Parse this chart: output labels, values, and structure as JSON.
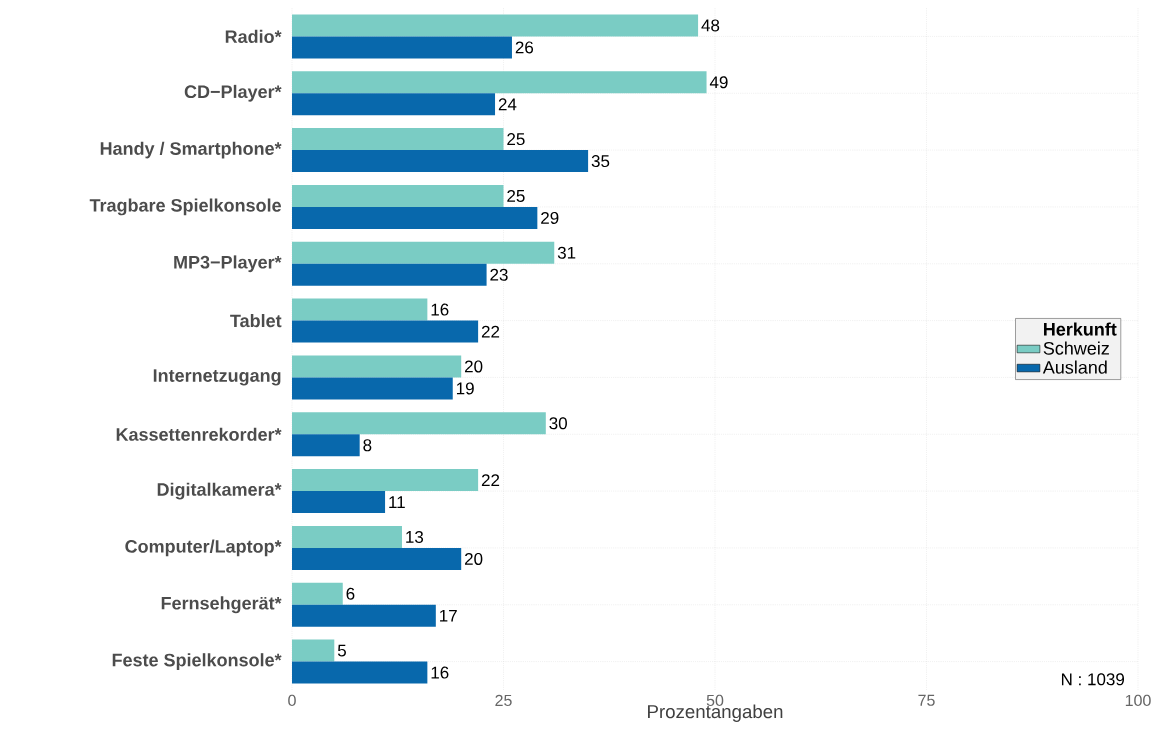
{
  "chart_data": {
    "type": "bar",
    "orientation": "horizontal",
    "categories": [
      "Radio*",
      "CD−Player*",
      "Handy / Smartphone*",
      "Tragbare Spielkonsole",
      "MP3−Player*",
      "Tablet",
      "Internetzugang",
      "Kassettenrekorder*",
      "Digitalkamera*",
      "Computer/Laptop*",
      "Fernsehgerät*",
      "Feste Spielkonsole*"
    ],
    "series": [
      {
        "name": "Schweiz",
        "color": "#7accc4",
        "values": [
          48,
          49,
          25,
          25,
          31,
          16,
          20,
          30,
          22,
          13,
          6,
          5
        ]
      },
      {
        "name": "Ausland",
        "color": "#0868ac",
        "values": [
          26,
          24,
          35,
          29,
          23,
          22,
          19,
          8,
          11,
          20,
          17,
          16
        ]
      }
    ],
    "xlabel": "Prozentangaben",
    "xlim": [
      0,
      100
    ],
    "xticks": [
      0,
      25,
      50,
      75,
      100
    ],
    "grid": true,
    "legend": "right",
    "legend_title": "Herkunft",
    "data_labels": true,
    "annotations": [
      "N : 1039"
    ]
  }
}
